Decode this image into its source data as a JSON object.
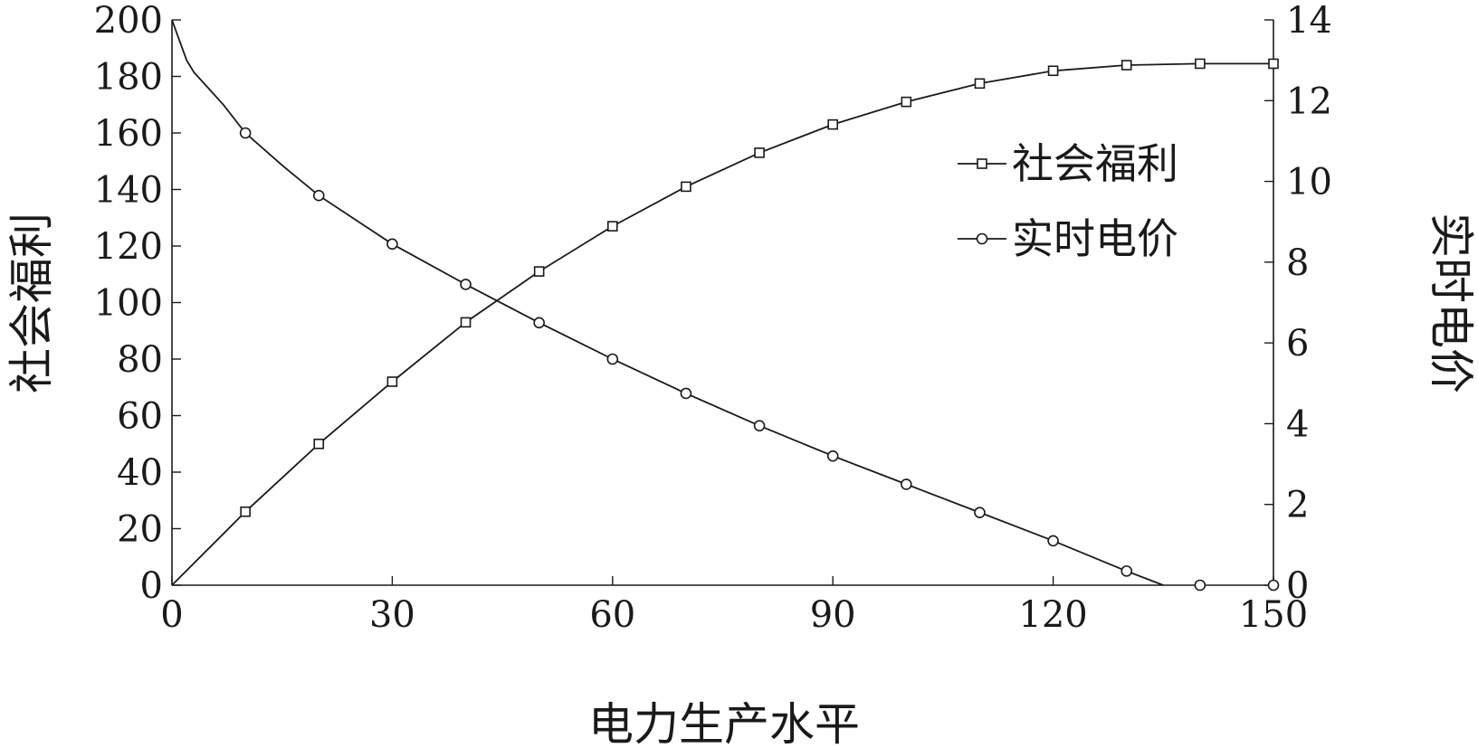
{
  "chart_data": {
    "type": "line",
    "title": "",
    "xlabel": "电力生产水平",
    "ylabel_left": "社会福利",
    "ylabel_right": "实时电价",
    "xlim": [
      0,
      150
    ],
    "ylim_left": [
      0,
      200
    ],
    "ylim_right": [
      0,
      14
    ],
    "x_ticks": [
      "0",
      "30",
      "60",
      "90",
      "120",
      "150"
    ],
    "y_left_ticks": [
      "0",
      "20",
      "40",
      "60",
      "80",
      "100",
      "120",
      "140",
      "160",
      "180",
      "200"
    ],
    "y_right_ticks": [
      "0",
      "2",
      "4",
      "6",
      "8",
      "10",
      "12",
      "14"
    ],
    "grid": false,
    "legend_position": "top-right",
    "series": [
      {
        "name": "社会福利",
        "axis": "left",
        "marker": "square",
        "color": "#1a1a1a",
        "line_x": [
          0,
          10,
          20,
          30,
          40,
          50,
          60,
          70,
          80,
          90,
          100,
          110,
          120,
          130,
          140,
          150
        ],
        "line_y": [
          0,
          26,
          50,
          72,
          93,
          111,
          127,
          141,
          153,
          163,
          171,
          177.5,
          182,
          184,
          184.5,
          184.5
        ],
        "marker_x": [
          10,
          20,
          30,
          40,
          50,
          60,
          70,
          80,
          90,
          100,
          110,
          120,
          130,
          140,
          150
        ],
        "marker_y": [
          26,
          50,
          72,
          93,
          111,
          127,
          141,
          153,
          163,
          171,
          177.5,
          182,
          184,
          184.5,
          184.5
        ]
      },
      {
        "name": "实时电价",
        "axis": "right",
        "marker": "circle",
        "color": "#1a1a1a",
        "line_x": [
          0,
          1,
          2,
          3,
          5,
          7,
          10,
          15,
          20,
          30,
          40,
          50,
          60,
          70,
          80,
          90,
          100,
          110,
          120,
          130,
          135
        ],
        "line_y": [
          14,
          13.5,
          13.0,
          12.7,
          12.3,
          11.9,
          11.2,
          10.4,
          9.65,
          8.45,
          7.45,
          6.5,
          5.6,
          4.75,
          3.95,
          3.2,
          2.5,
          1.8,
          1.1,
          0.35,
          0
        ],
        "marker_x": [
          10,
          20,
          30,
          40,
          50,
          60,
          70,
          80,
          90,
          100,
          110,
          120,
          130,
          140,
          150
        ],
        "marker_y": [
          11.2,
          9.65,
          8.45,
          7.45,
          6.5,
          5.6,
          4.75,
          3.95,
          3.2,
          2.5,
          1.8,
          1.1,
          0.35,
          0,
          0
        ]
      }
    ]
  }
}
